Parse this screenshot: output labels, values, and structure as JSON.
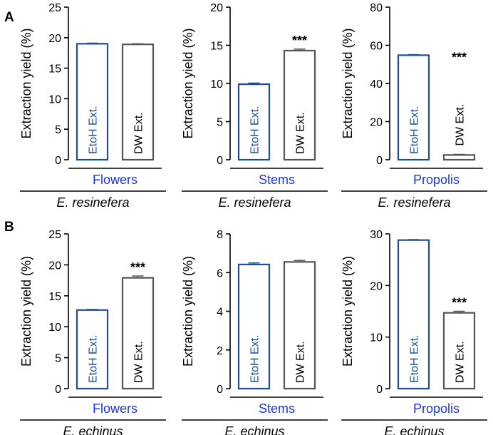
{
  "figure": {
    "panels": [
      {
        "letter": "A",
        "species": "E. resinefera"
      },
      {
        "letter": "B",
        "species": "E. echinus"
      }
    ]
  },
  "colors": {
    "etoh": "#1f4e96",
    "dw": "#555555",
    "group_label": "#1a35e6",
    "axis": "#000000"
  },
  "chart_data": [
    {
      "type": "bar",
      "panel": "A",
      "ylabel": "Extraction yield (%)",
      "ylim": [
        0,
        25
      ],
      "yticks": [
        0,
        5,
        10,
        15,
        20,
        25
      ],
      "group": "Flowers",
      "species": "E. resinefera",
      "bars": [
        {
          "label": "EtoH Ext.",
          "value": 19.0,
          "error": 0.1,
          "sig": ""
        },
        {
          "label": "DW Ext.",
          "value": 18.9,
          "error": 0.1,
          "sig": ""
        }
      ]
    },
    {
      "type": "bar",
      "panel": "A",
      "ylabel": "Extraction yield (%)",
      "ylim": [
        0,
        20
      ],
      "yticks": [
        0,
        5,
        10,
        15,
        20
      ],
      "group": "Stems",
      "species": "E. resinefera",
      "bars": [
        {
          "label": "EtoH Ext.",
          "value": 9.9,
          "error": 0.15,
          "sig": ""
        },
        {
          "label": "DW Ext.",
          "value": 14.3,
          "error": 0.2,
          "sig": "***"
        }
      ]
    },
    {
      "type": "bar",
      "panel": "A",
      "ylabel": "Extraction yield (%)",
      "ylim": [
        0,
        80
      ],
      "yticks": [
        0,
        20,
        40,
        60,
        80
      ],
      "group": "Propolis",
      "species": "E. resinefera",
      "bars": [
        {
          "label": "EtoH Ext.",
          "value": 54.8,
          "error": 0.3,
          "sig": ""
        },
        {
          "label": "DW Ext.",
          "value": 2.5,
          "error": 0.3,
          "sig": "***"
        }
      ]
    },
    {
      "type": "bar",
      "panel": "B",
      "ylabel": "Extraction yield (%)",
      "ylim": [
        0,
        25
      ],
      "yticks": [
        0,
        5,
        10,
        15,
        20,
        25
      ],
      "group": "Flowers",
      "species": "E. echinus",
      "bars": [
        {
          "label": "EtoH Ext.",
          "value": 12.7,
          "error": 0.1,
          "sig": ""
        },
        {
          "label": "DW Ext.",
          "value": 17.9,
          "error": 0.3,
          "sig": "***"
        }
      ]
    },
    {
      "type": "bar",
      "panel": "B",
      "ylabel": "Extraction yield (%)",
      "ylim": [
        0,
        8
      ],
      "yticks": [
        0,
        2,
        4,
        6,
        8
      ],
      "group": "Stems",
      "species": "E. echinus",
      "bars": [
        {
          "label": "EtoH Ext.",
          "value": 6.42,
          "error": 0.08,
          "sig": ""
        },
        {
          "label": "DW Ext.",
          "value": 6.55,
          "error": 0.08,
          "sig": ""
        }
      ]
    },
    {
      "type": "bar",
      "panel": "B",
      "ylabel": "Extraction yield (%)",
      "ylim": [
        0,
        30
      ],
      "yticks": [
        0,
        10,
        20,
        30
      ],
      "group": "Propolis",
      "species": "E. echinus",
      "bars": [
        {
          "label": "EtoH Ext.",
          "value": 28.8,
          "error": 0.1,
          "sig": ""
        },
        {
          "label": "DW Ext.",
          "value": 14.7,
          "error": 0.3,
          "sig": "***"
        }
      ]
    }
  ]
}
